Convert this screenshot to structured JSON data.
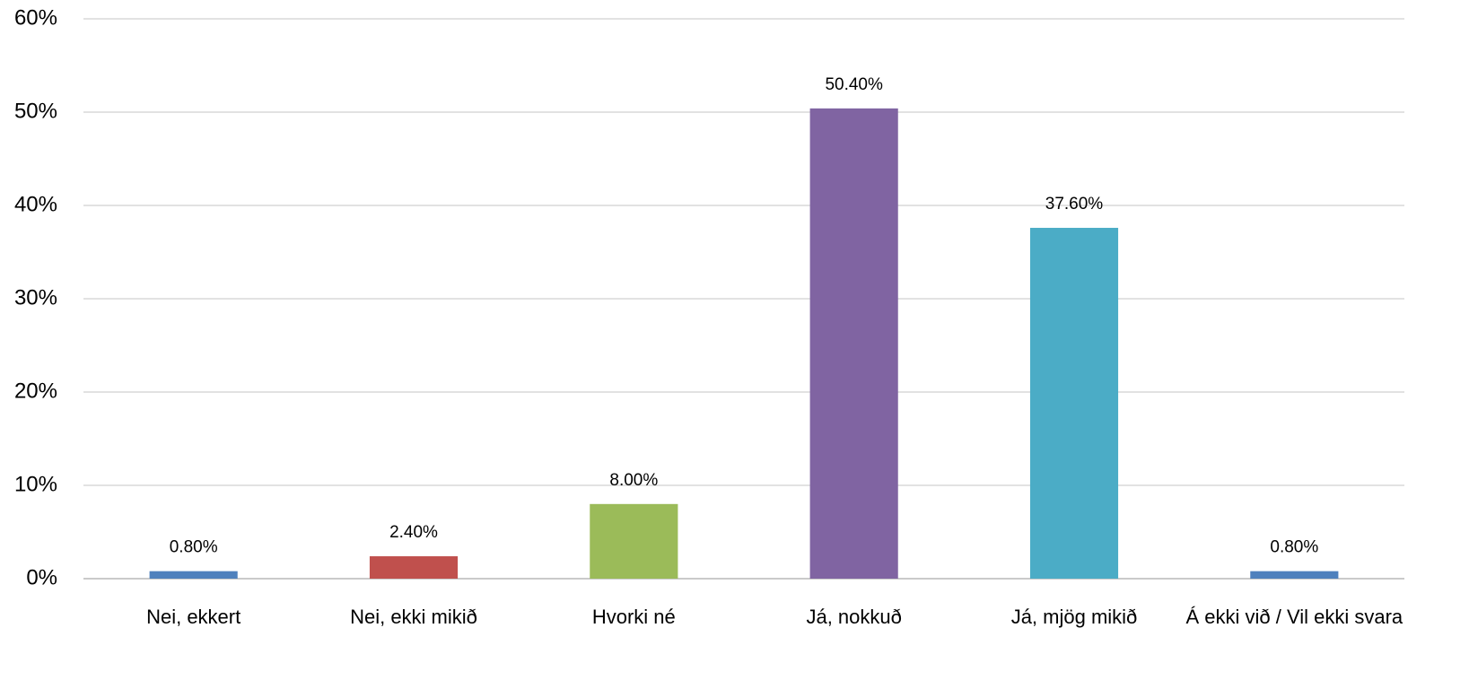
{
  "chart_data": {
    "type": "bar",
    "categories": [
      "Nei, ekkert",
      "Nei, ekki mikið",
      "Hvorki né",
      "Já, nokkuð",
      "Já, mjög mikið",
      "Á ekki við / Vil ekki svara"
    ],
    "values": [
      0.8,
      2.4,
      8.0,
      50.4,
      37.6,
      0.8
    ],
    "value_labels": [
      "0.80%",
      "2.40%",
      "8.00%",
      "50.40%",
      "37.60%",
      "0.80%"
    ],
    "colors": [
      "#4f81bd",
      "#c0504d",
      "#9bbb59",
      "#8064a2",
      "#4bacc6",
      "#4f81bd"
    ],
    "ylim": [
      0,
      60
    ],
    "yticks": [
      {
        "value": 0,
        "label": "0%"
      },
      {
        "value": 10,
        "label": "10%"
      },
      {
        "value": 20,
        "label": "20%"
      },
      {
        "value": 30,
        "label": "30%"
      },
      {
        "value": 40,
        "label": "40%"
      },
      {
        "value": 50,
        "label": "50%"
      },
      {
        "value": 60,
        "label": "60%"
      }
    ],
    "grid": true
  }
}
